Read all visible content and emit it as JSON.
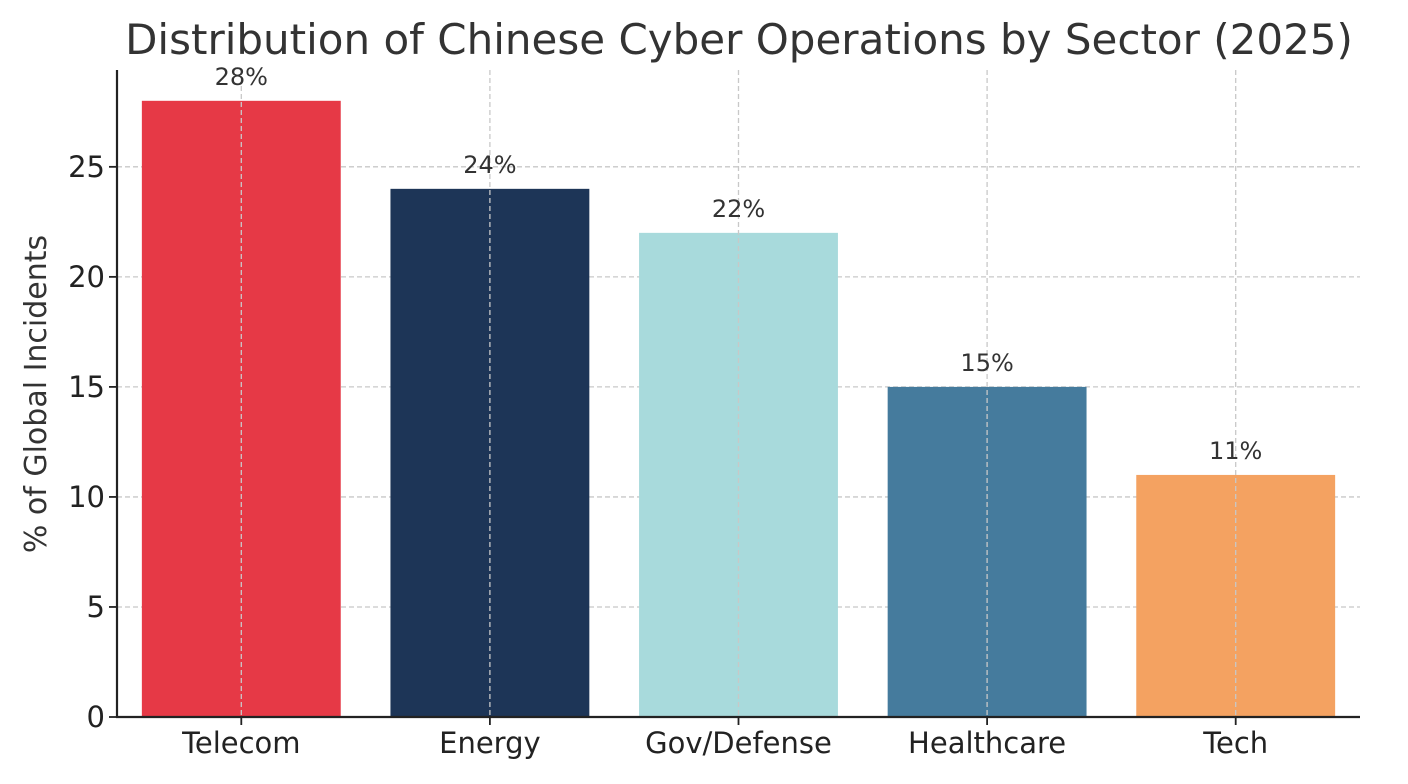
{
  "chart_data": {
    "type": "bar",
    "title": "Distribution of Chinese Cyber Operations by Sector (2025)",
    "xlabel": "",
    "ylabel": "% of Global Incidents",
    "categories": [
      "Telecom",
      "Energy",
      "Gov/Defense",
      "Healthcare",
      "Tech"
    ],
    "values": [
      28,
      24,
      22,
      15,
      11
    ],
    "value_labels": [
      "28%",
      "24%",
      "22%",
      "15%",
      "11%"
    ],
    "colors": [
      "#e63946",
      "#1d3557",
      "#a8dadc",
      "#457b9d",
      "#f4a261"
    ],
    "ylim": [
      0,
      29.4
    ],
    "yticks": [
      0,
      5,
      10,
      15,
      20,
      25
    ],
    "ytick_labels": [
      "0",
      "5",
      "10",
      "15",
      "20",
      "25"
    ],
    "grid": true,
    "legend": "none"
  }
}
